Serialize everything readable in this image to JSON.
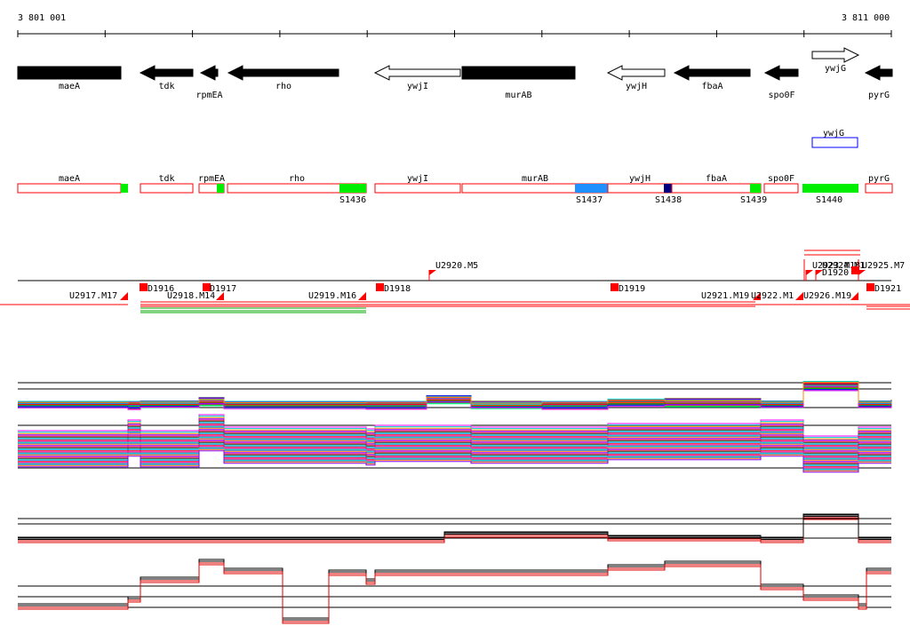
{
  "ruler": {
    "start_label": "3 801 001",
    "end_label": "3 811 000"
  },
  "colors": {
    "gene_fill": "#000000",
    "gene_outline": "#000000",
    "promoter_box": "#ff0000",
    "green": "#00ee00",
    "cyan": "#1e90ff",
    "navy": "#000080",
    "mark_red": "#ff0000",
    "blue_outline": "#0000ff",
    "track_red": "#dd0000"
  },
  "genes": [
    {
      "name": "maeA",
      "strand": "+",
      "filled": true,
      "name_pos": "below"
    },
    {
      "name": "tdk",
      "strand": "-",
      "filled": true,
      "name_pos": "below"
    },
    {
      "name": "rpmEA",
      "strand": "-",
      "filled": true,
      "name_pos": "below-low"
    },
    {
      "name": "rho",
      "strand": "-",
      "filled": true,
      "name_pos": "below"
    },
    {
      "name": "ywjI",
      "strand": "-",
      "filled": false,
      "name_pos": "below"
    },
    {
      "name": "murAB",
      "strand": "+",
      "filled": true,
      "name_pos": "below-low"
    },
    {
      "name": "ywjH",
      "strand": "-",
      "filled": false,
      "name_pos": "below"
    },
    {
      "name": "fbaA",
      "strand": "-",
      "filled": true,
      "name_pos": "below"
    },
    {
      "name": "spo0F",
      "strand": "-",
      "filled": true,
      "name_pos": "below-low"
    },
    {
      "name": "ywjG",
      "strand": "+",
      "filled": false,
      "name_pos": "below"
    },
    {
      "name": "pyrG",
      "strand": "-",
      "filled": true,
      "name_pos": "below-low"
    }
  ],
  "ywjG_box": {
    "label": "ywjG"
  },
  "operons": [
    {
      "label": "maeA"
    },
    {
      "label": "tdk"
    },
    {
      "label": "rpmEA"
    },
    {
      "label": "rho"
    },
    {
      "label": "ywjI"
    },
    {
      "label": "murAB"
    },
    {
      "label": "ywjH"
    },
    {
      "label": "fbaA"
    },
    {
      "label": "spo0F"
    },
    {
      "label": "pyrG"
    }
  ],
  "segments": [
    {
      "label": "S1436",
      "color": "green"
    },
    {
      "label": "S1437",
      "color": "cyan"
    },
    {
      "label": "S1438",
      "color": "navy"
    },
    {
      "label": "S1439",
      "color": "green"
    },
    {
      "label": "S1440",
      "color": "green"
    }
  ],
  "upstream_labels": [
    "U2917.M17",
    "U2918.M14",
    "U2919.M16",
    "U2920.M5",
    "U2921.M19",
    "U2922.M1",
    "U2923.M18",
    "U2924.M1",
    "U2925.M7",
    "U2926.M19"
  ],
  "downstream_labels": [
    "D1916",
    "D1917",
    "D1918",
    "D1919",
    "D1920",
    "D1921"
  ]
}
